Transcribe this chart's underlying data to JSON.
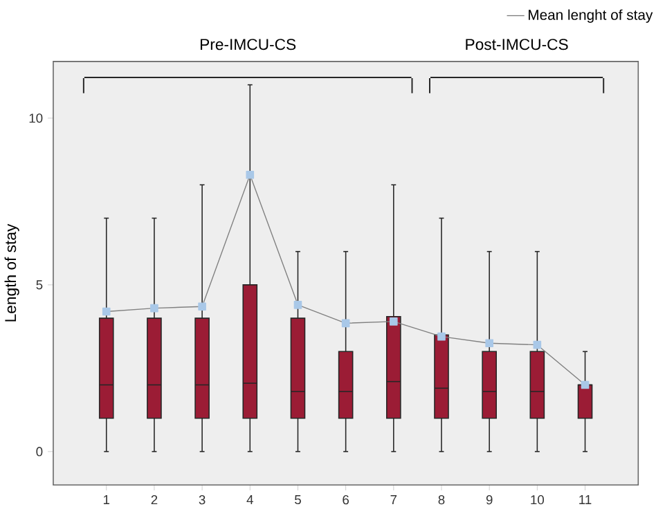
{
  "chart_data": {
    "type": "box",
    "ylabel": "Length of stay",
    "categories": [
      "1",
      "2",
      "3",
      "4",
      "5",
      "6",
      "7",
      "8",
      "9",
      "10",
      "11"
    ],
    "color": "#9b1c35",
    "boxes": [
      {
        "low": 0,
        "q1": 1,
        "median": 2,
        "q3": 4,
        "high": 7
      },
      {
        "low": 0,
        "q1": 1,
        "median": 2,
        "q3": 4,
        "high": 7
      },
      {
        "low": 0,
        "q1": 1,
        "median": 2,
        "q3": 4,
        "high": 8
      },
      {
        "low": 0,
        "q1": 1,
        "median": 2.05,
        "q3": 5,
        "high": 11
      },
      {
        "low": 0,
        "q1": 1,
        "median": 1.8,
        "q3": 4,
        "high": 6
      },
      {
        "low": 0,
        "q1": 1,
        "median": 1.8,
        "q3": 3,
        "high": 6
      },
      {
        "low": 0,
        "q1": 1,
        "median": 2.1,
        "q3": 4.05,
        "high": 8
      },
      {
        "low": 0,
        "q1": 1,
        "median": 1.9,
        "q3": 3.5,
        "high": 7
      },
      {
        "low": 0,
        "q1": 1,
        "median": 1.8,
        "q3": 3,
        "high": 6
      },
      {
        "low": 0,
        "q1": 1,
        "median": 1.8,
        "q3": 3,
        "high": 6
      },
      {
        "low": 0,
        "q1": 1,
        "median": 2,
        "q3": 2,
        "high": 3
      }
    ],
    "series": [
      {
        "type": "line",
        "name": "Mean lenght of stay",
        "color": "#808080",
        "values": [
          4.2,
          4.3,
          4.35,
          8.3,
          4.4,
          3.85,
          3.9,
          3.45,
          3.25,
          3.2,
          2.0
        ]
      }
    ],
    "marker": "square",
    "legend": "top right",
    "ylim": [
      -1,
      11.7
    ],
    "yticks": [
      0,
      5,
      10
    ],
    "annotations": [
      "Pre-IMCU-CS",
      "Post-IMCU-CS"
    ]
  }
}
